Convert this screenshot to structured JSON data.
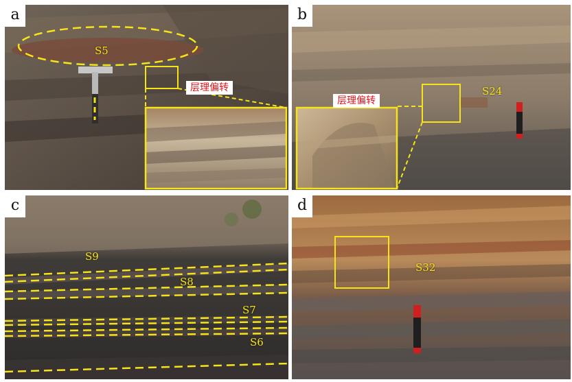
{
  "colors": {
    "annotation_yellow": "#f7e31a",
    "callout_red": "#e0151a",
    "label_bg": "#ffffff"
  },
  "panels": {
    "a": {
      "label": "a",
      "layer": "S5",
      "callout": "层理偏转"
    },
    "b": {
      "label": "b",
      "layer": "S24",
      "callout": "层理偏转"
    },
    "c": {
      "label": "c",
      "layers": [
        "S9",
        "S8",
        "S7",
        "S6"
      ]
    },
    "d": {
      "label": "d",
      "layer": "S32"
    }
  }
}
